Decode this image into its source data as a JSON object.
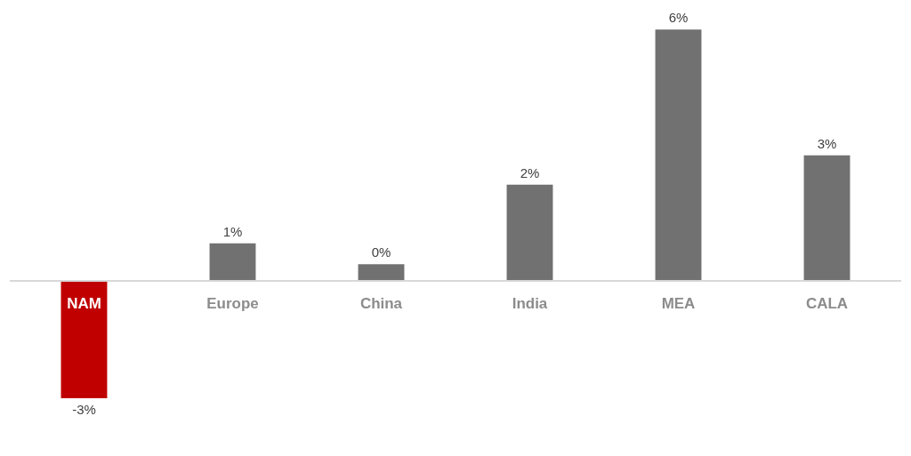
{
  "chart_data": {
    "type": "bar",
    "categories": [
      "NAM",
      "Europe",
      "China",
      "India",
      "MEA",
      "CALA"
    ],
    "values": [
      -2.8,
      0.9,
      0.4,
      2.3,
      6,
      3
    ],
    "value_labels": [
      "-3%",
      "1%",
      "0%",
      "2%",
      "6%",
      "3%"
    ],
    "colors": [
      "#c00000",
      "#717171",
      "#717171",
      "#717171",
      "#717171",
      "#717171"
    ],
    "grid": false
  }
}
